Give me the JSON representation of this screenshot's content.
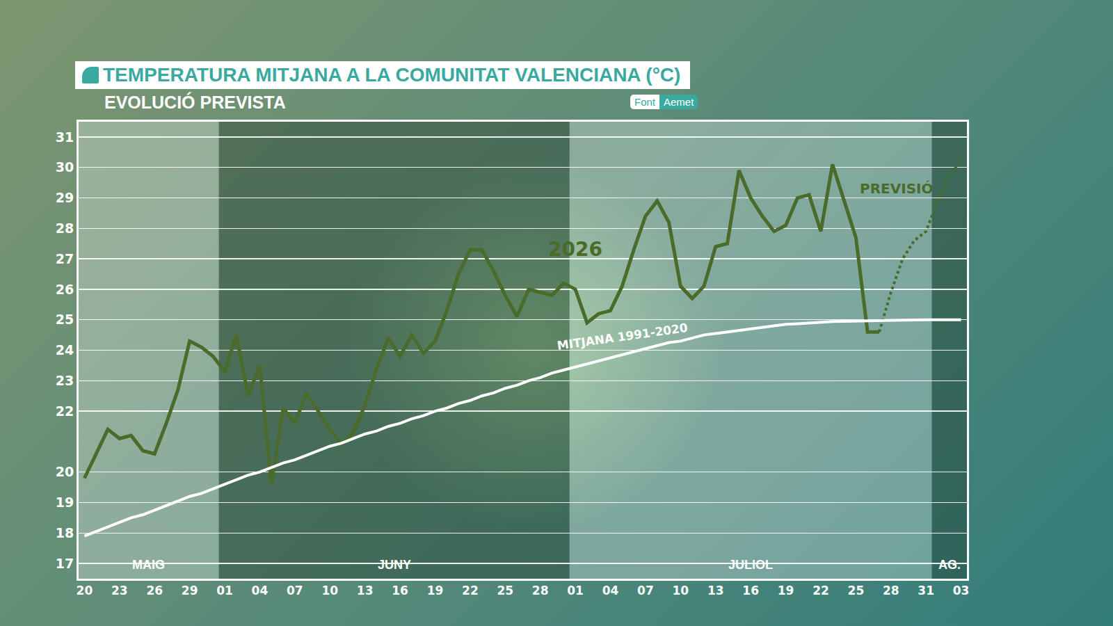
{
  "chart_data": {
    "type": "line",
    "title": "TEMPERATURA MITJANA A LA COMUNITAT VALENCIANA (°C)",
    "subtitle": "EVOLUCIÓ PREVISTA",
    "source_label": "Font",
    "source": "Aemet",
    "categories": [
      "20",
      null,
      null,
      "23",
      null,
      null,
      "26",
      null,
      null,
      "29",
      null,
      null,
      "01",
      null,
      null,
      "04",
      null,
      null,
      "07",
      null,
      null,
      "10",
      null,
      null,
      "13",
      null,
      null,
      "16",
      null,
      null,
      "19",
      null,
      null,
      "22",
      null,
      null,
      "25",
      null,
      null,
      "28",
      null,
      null,
      "01",
      null,
      null,
      "04",
      null,
      null,
      "07",
      null,
      null,
      "10",
      null,
      null,
      "13",
      null,
      null,
      "16",
      null,
      null,
      "19",
      null,
      null,
      "22",
      null,
      null,
      "25",
      null,
      null,
      "28",
      null,
      null,
      "31",
      null,
      null,
      "03"
    ],
    "months": [
      {
        "label": "MAIG",
        "start": 0,
        "end": 11
      },
      {
        "label": "JUNY",
        "start": 12,
        "end": 41
      },
      {
        "label": "JULIOL",
        "start": 42,
        "end": 72
      },
      {
        "label": "AG.",
        "start": 73,
        "end": 75
      }
    ],
    "series": [
      {
        "name": "2026",
        "color": "#4b6b2b",
        "line_style": "solid",
        "label_x": 42,
        "label_y": 27.3,
        "values": [
          19.8,
          20.6,
          21.4,
          21.1,
          21.2,
          20.7,
          20.6,
          21.6,
          22.7,
          24.3,
          24.1,
          23.8,
          23.3,
          24.5,
          22.5,
          23.5,
          19.6,
          22.1,
          21.6,
          22.6,
          22.0,
          21.4,
          20.9,
          21.3,
          22.2,
          23.4,
          24.4,
          23.8,
          24.5,
          23.9,
          24.3,
          25.3,
          26.5,
          27.3,
          27.3,
          26.6,
          25.8,
          25.1,
          26.0,
          25.9,
          25.8,
          26.2,
          26.0,
          24.9,
          25.2,
          25.3,
          26.1,
          27.3,
          28.4,
          28.9,
          28.2,
          26.1,
          25.7,
          26.1,
          27.4,
          27.5,
          29.9,
          29.0,
          28.4,
          27.9,
          28.1,
          29.0,
          29.1,
          27.9,
          30.1,
          28.9,
          27.7,
          24.6,
          24.6,
          null,
          null,
          null,
          null,
          null,
          null,
          null
        ]
      },
      {
        "name": "PREVISIÓ",
        "color": "#4b6b2b",
        "line_style": "dotted",
        "label_x": 69.5,
        "label_y": 29.3,
        "values": [
          null,
          null,
          null,
          null,
          null,
          null,
          null,
          null,
          null,
          null,
          null,
          null,
          null,
          null,
          null,
          null,
          null,
          null,
          null,
          null,
          null,
          null,
          null,
          null,
          null,
          null,
          null,
          null,
          null,
          null,
          null,
          null,
          null,
          null,
          null,
          null,
          null,
          null,
          null,
          null,
          null,
          null,
          null,
          null,
          null,
          null,
          null,
          null,
          null,
          null,
          null,
          null,
          null,
          null,
          null,
          null,
          null,
          null,
          null,
          null,
          null,
          null,
          null,
          null,
          null,
          null,
          null,
          null,
          24.6,
          25.9,
          27.0,
          27.6,
          27.9,
          28.9,
          29.8,
          30.2
        ]
      },
      {
        "name": "MITJANA 1991-2020",
        "color": "#ffffff",
        "line_style": "solid",
        "label_x": 46,
        "label_y": 24.45,
        "values": [
          17.9,
          18.05,
          18.2,
          18.35,
          18.5,
          18.6,
          18.75,
          18.9,
          19.05,
          19.2,
          19.3,
          19.45,
          19.6,
          19.75,
          19.9,
          20.0,
          20.15,
          20.3,
          20.4,
          20.55,
          20.7,
          20.85,
          20.95,
          21.1,
          21.25,
          21.35,
          21.5,
          21.6,
          21.75,
          21.85,
          22.0,
          22.1,
          22.25,
          22.35,
          22.5,
          22.6,
          22.75,
          22.85,
          23.0,
          23.1,
          23.25,
          23.35,
          23.45,
          23.55,
          23.65,
          23.75,
          23.85,
          23.95,
          24.05,
          24.15,
          24.25,
          24.3,
          24.4,
          24.5,
          24.55,
          24.6,
          24.65,
          24.7,
          24.75,
          24.8,
          24.85,
          24.87,
          24.9,
          24.92,
          24.94,
          24.95,
          24.96,
          24.97,
          24.98,
          24.98,
          24.99,
          25.0,
          25.0,
          25.0,
          25.0,
          25.0
        ]
      }
    ],
    "ylim": [
      16.5,
      31.5
    ],
    "yticks": [
      17,
      18,
      19,
      20,
      22,
      23,
      24,
      25,
      26,
      27,
      28,
      29,
      30,
      31
    ],
    "grid": true
  }
}
